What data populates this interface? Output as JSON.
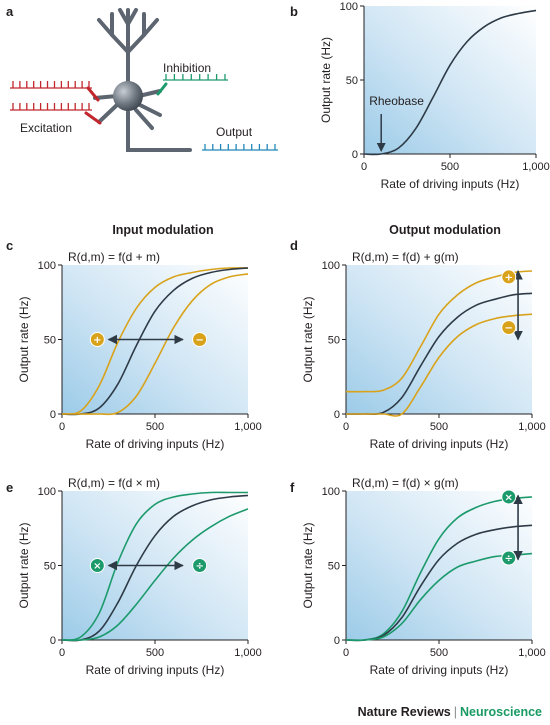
{
  "colors": {
    "black_curve": "#2e3b47",
    "orange": "#d9a21b",
    "green": "#1c9a6c",
    "red": "#c1272d",
    "blue_spike": "#2288b8",
    "neuron": "#6e7680"
  },
  "panel_letters": {
    "a": "a",
    "b": "b",
    "c": "c",
    "d": "d",
    "e": "e",
    "f": "f"
  },
  "headers": {
    "input": "Input modulation",
    "output": "Output modulation"
  },
  "schematic": {
    "inhibition": "Inhibition",
    "excitation": "Excitation",
    "output": "Output"
  },
  "chart_data": [
    {
      "panel": "b",
      "type": "line",
      "xlabel": "Rate of driving inputs (Hz)",
      "ylabel": "Output rate (Hz)",
      "xlim": [
        0,
        1000
      ],
      "ylim": [
        0,
        100
      ],
      "xticks": [
        "0",
        "500",
        "1,000"
      ],
      "yticks": [
        "0",
        "50",
        "100"
      ],
      "annotation": "Rheobase",
      "annotation_x": 100,
      "series": [
        {
          "color": "black",
          "x": [
            0,
            100,
            200,
            300,
            400,
            500,
            600,
            700,
            800,
            900,
            1000
          ],
          "values": [
            0,
            0,
            4,
            17,
            38,
            60,
            76,
            86,
            92,
            95,
            97
          ]
        }
      ]
    },
    {
      "panel": "c",
      "type": "line",
      "formula": "R(d,m) = f(d + m)",
      "xlabel": "Rate of driving inputs (Hz)",
      "ylabel": "Output rate (Hz)",
      "xlim": [
        0,
        1000
      ],
      "ylim": [
        0,
        100
      ],
      "xticks": [
        "0",
        "500",
        "1,000"
      ],
      "yticks": [
        "0",
        "50",
        "100"
      ],
      "symbols": [
        "+",
        "−"
      ],
      "series": [
        {
          "color": "orange",
          "x": [
            0,
            100,
            200,
            300,
            400,
            500,
            600,
            700,
            800,
            900,
            1000
          ],
          "values": [
            0,
            2,
            19,
            48,
            71,
            85,
            92,
            95,
            97,
            98,
            98
          ]
        },
        {
          "color": "black",
          "x": [
            0,
            100,
            200,
            300,
            400,
            500,
            600,
            700,
            800,
            900,
            1000
          ],
          "values": [
            0,
            0,
            4,
            20,
            46,
            69,
            83,
            91,
            95,
            97,
            98
          ]
        },
        {
          "color": "orange",
          "x": [
            0,
            100,
            200,
            300,
            400,
            500,
            600,
            700,
            800,
            900,
            1000
          ],
          "values": [
            0,
            0,
            0,
            1,
            12,
            34,
            58,
            76,
            87,
            92,
            94
          ]
        }
      ]
    },
    {
      "panel": "d",
      "type": "line",
      "formula": "R(d,m) = f(d) + g(m)",
      "xlabel": "Rate of driving inputs (Hz)",
      "ylabel": "Output rate (Hz)",
      "xlim": [
        0,
        1000
      ],
      "ylim": [
        0,
        100
      ],
      "xticks": [
        "0",
        "500",
        "1,000"
      ],
      "yticks": [
        "0",
        "50",
        "100"
      ],
      "symbols": [
        "+",
        "−"
      ],
      "series": [
        {
          "color": "orange",
          "x": [
            0,
            100,
            200,
            300,
            400,
            500,
            600,
            700,
            800,
            900,
            1000
          ],
          "values": [
            15,
            15,
            16,
            24,
            45,
            67,
            80,
            88,
            92,
            95,
            96
          ]
        },
        {
          "color": "black",
          "x": [
            0,
            100,
            200,
            300,
            400,
            500,
            600,
            700,
            800,
            900,
            1000
          ],
          "values": [
            0,
            0,
            1,
            11,
            32,
            52,
            65,
            73,
            77,
            80,
            81
          ]
        },
        {
          "color": "orange",
          "x": [
            0,
            100,
            200,
            300,
            400,
            500,
            600,
            700,
            800,
            900,
            1000
          ],
          "values": [
            0,
            0,
            0,
            0,
            18,
            38,
            52,
            60,
            64,
            66,
            67
          ]
        }
      ]
    },
    {
      "panel": "e",
      "type": "line",
      "formula": "R(d,m) = f(d × m)",
      "xlabel": "Rate of driving inputs (Hz)",
      "ylabel": "Output rate (Hz)",
      "xlim": [
        0,
        1000
      ],
      "ylim": [
        0,
        100
      ],
      "xticks": [
        "0",
        "500",
        "1,000"
      ],
      "yticks": [
        "0",
        "50",
        "100"
      ],
      "symbols": [
        "×",
        "÷"
      ],
      "series": [
        {
          "color": "green",
          "x": [
            0,
            100,
            200,
            300,
            400,
            500,
            600,
            700,
            800,
            900,
            1000
          ],
          "values": [
            0,
            2,
            18,
            52,
            78,
            91,
            96,
            98,
            99,
            99,
            99
          ]
        },
        {
          "color": "black",
          "x": [
            0,
            100,
            200,
            300,
            400,
            500,
            600,
            700,
            800,
            900,
            1000
          ],
          "values": [
            0,
            0,
            6,
            25,
            50,
            70,
            83,
            90,
            94,
            96,
            97
          ]
        },
        {
          "color": "green",
          "x": [
            0,
            100,
            200,
            300,
            400,
            500,
            600,
            700,
            800,
            900,
            1000
          ],
          "values": [
            0,
            0,
            2,
            10,
            24,
            40,
            55,
            67,
            76,
            83,
            88
          ]
        }
      ]
    },
    {
      "panel": "f",
      "type": "line",
      "formula": "R(d,m) = f(d) × g(m)",
      "xlabel": "Rate of driving inputs (Hz)",
      "ylabel": "Output rate (Hz)",
      "xlim": [
        0,
        1000
      ],
      "ylim": [
        0,
        100
      ],
      "xticks": [
        "0",
        "500",
        "1,000"
      ],
      "yticks": [
        "0",
        "50",
        "100"
      ],
      "symbols": [
        "×",
        "÷"
      ],
      "series": [
        {
          "color": "green",
          "x": [
            0,
            100,
            200,
            300,
            400,
            500,
            600,
            700,
            800,
            900,
            1000
          ],
          "values": [
            0,
            0,
            4,
            19,
            45,
            68,
            82,
            89,
            93,
            95,
            96
          ]
        },
        {
          "color": "black",
          "x": [
            0,
            100,
            200,
            300,
            400,
            500,
            600,
            700,
            800,
            900,
            1000
          ],
          "values": [
            0,
            0,
            3,
            15,
            36,
            54,
            65,
            71,
            74,
            76,
            77
          ]
        },
        {
          "color": "green",
          "x": [
            0,
            100,
            200,
            300,
            400,
            500,
            600,
            700,
            800,
            900,
            1000
          ],
          "values": [
            0,
            0,
            2,
            11,
            27,
            40,
            49,
            53,
            56,
            57,
            58
          ]
        }
      ]
    }
  ],
  "credit": {
    "journal": "Nature Reviews",
    "separator": "|",
    "subject": "Neuroscience"
  }
}
